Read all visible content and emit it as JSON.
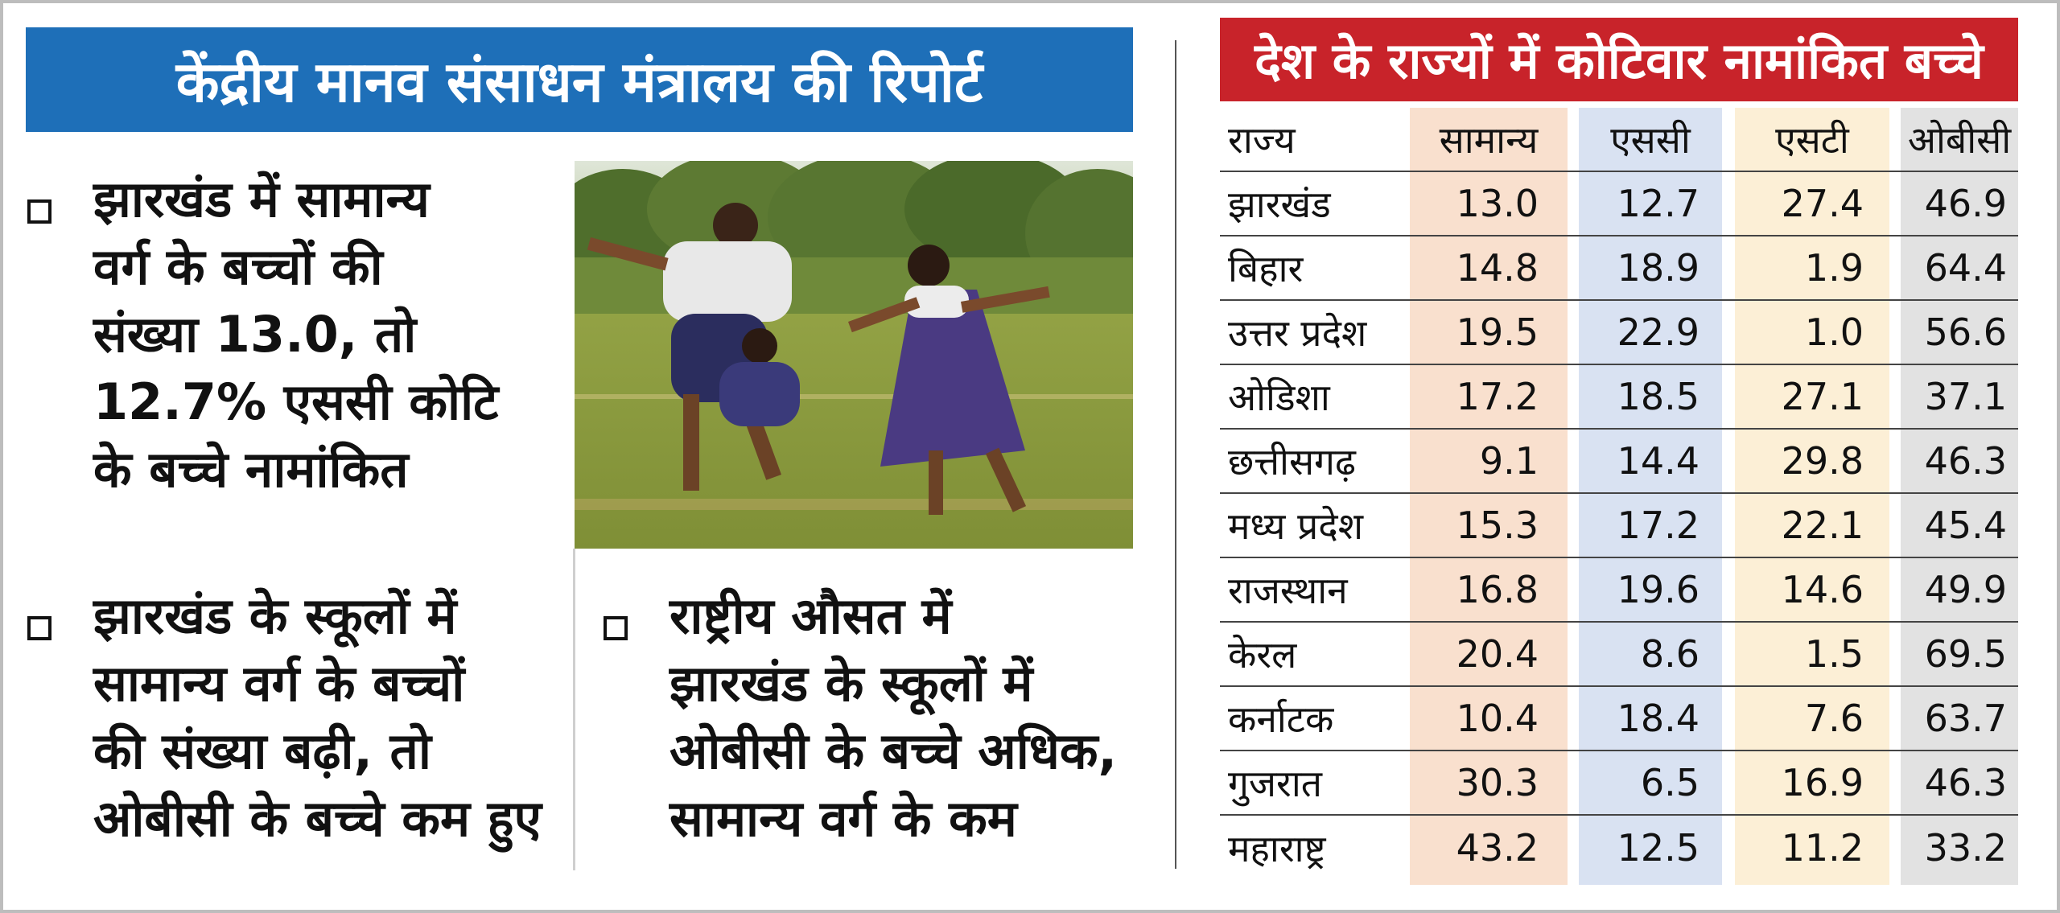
{
  "left_title": "केंद्रीय मानव संसाधन मंत्रालय की रिपोर्ट",
  "bullets": [
    "झारखंड में सामान्य\nवर्ग के बच्चों की\nसंख्या 13.0, तो\n12.7% एससी कोटि\nके बच्चे नामांकित",
    "झारखंड के स्कूलों में\nसामान्य वर्ग के बच्चों\nकी संख्या बढ़ी, तो\nओबीसी के बच्चे कम हुए",
    "राष्ट्रीय औसत में\nझारखंड के स्कूलों में\nओबीसी के बच्चे अधिक,\nसामान्य वर्ग के कम"
  ],
  "right_title": "देश के राज्यों में कोटिवार नामांकित बच्चे",
  "table": {
    "headers": [
      "राज्य",
      "सामान्य",
      "एससी",
      "एसटी",
      "ओबीसी"
    ],
    "rows": [
      [
        "झारखंड",
        "13.0",
        "12.7",
        "27.4",
        "46.9"
      ],
      [
        "बिहार",
        "14.8",
        "18.9",
        "1.9",
        "64.4"
      ],
      [
        "उत्तर प्रदेश",
        "19.5",
        "22.9",
        "1.0",
        "56.6"
      ],
      [
        "ओडिशा",
        "17.2",
        "18.5",
        "27.1",
        "37.1"
      ],
      [
        "छत्तीसगढ़",
        "9.1",
        "14.4",
        "29.8",
        "46.3"
      ],
      [
        "मध्य प्रदेश",
        "15.3",
        "17.2",
        "22.1",
        "45.4"
      ],
      [
        "राजस्थान",
        "16.8",
        "19.6",
        "14.6",
        "49.9"
      ],
      [
        "केरल",
        "20.4",
        "8.6",
        "1.5",
        "69.5"
      ],
      [
        "कर्नाटक",
        "10.4",
        "18.4",
        "7.6",
        "63.7"
      ],
      [
        "गुजरात",
        "30.3",
        "6.5",
        "16.9",
        "46.3"
      ],
      [
        "महाराष्ट्र",
        "43.2",
        "12.5",
        "11.2",
        "33.2"
      ]
    ]
  }
}
